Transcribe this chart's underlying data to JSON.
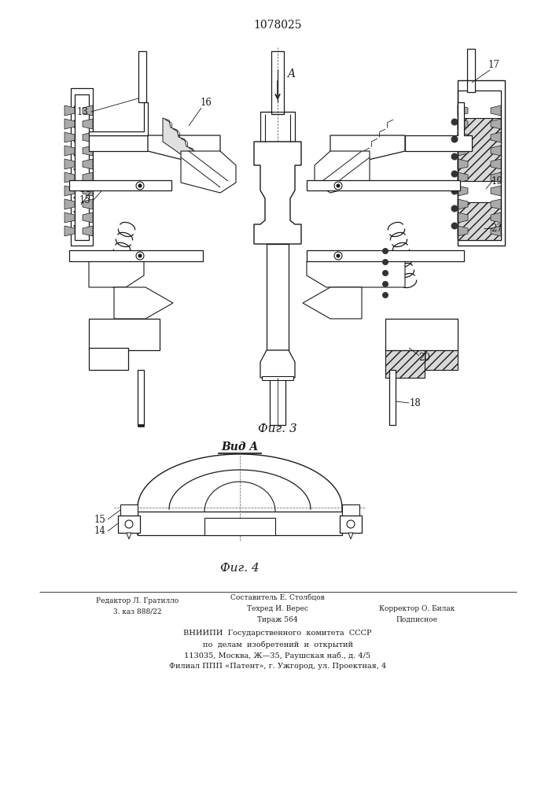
{
  "title_number": "1078025",
  "fig3_label": "Фиг. 3",
  "fig4_label": "Фиг. 4",
  "view_label": "Вид A",
  "arrow_label": "A",
  "bg_color": "#ffffff",
  "line_color": "#1a1a1a",
  "bottom_col1_l1": "Редактор Л. Гратилло",
  "bottom_col1_l2": "3. каз 888/22",
  "bottom_col2_l1": "Составитель Е. Столбцов",
  "bottom_col2_l2": "Техред И. Верес",
  "bottom_col2_l3": "Тираж 564",
  "bottom_col3_l1": "Корректор О. Билак",
  "bottom_col3_l2": "Подписное",
  "vnipi_l1": "ВНИИПИ  Государственного  комитета  СССР",
  "vnipi_l2": "по  делам  изобретений  и  открытий",
  "vnipi_l3": "113035, Москва, Ж—35, Раушская наб., д. 4/5",
  "vnipi_l4": "Филиал ППП «Патент», г. Ужгород, ул. Проектная, 4"
}
